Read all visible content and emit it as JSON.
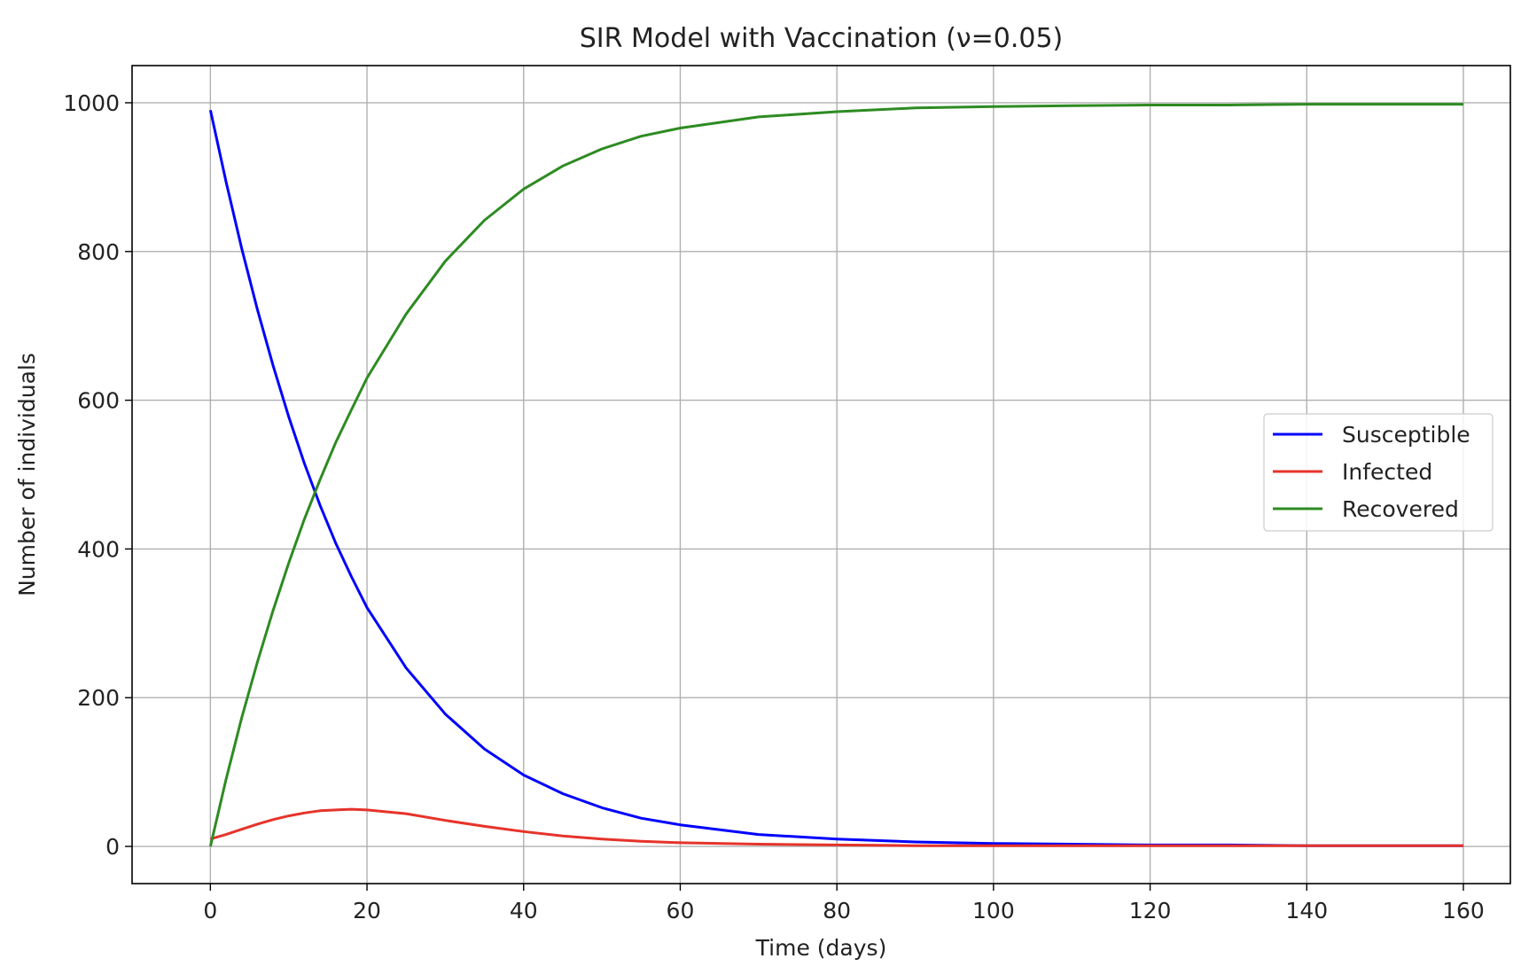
{
  "chart_data": {
    "type": "line",
    "title": "SIR Model with Vaccination (ν=0.05)",
    "xlabel": "Time (days)",
    "ylabel": "Number of individuals",
    "xlim": [
      -10,
      166
    ],
    "ylim": [
      -50,
      1050
    ],
    "xticks": [
      0,
      20,
      40,
      60,
      80,
      100,
      120,
      140,
      160
    ],
    "yticks": [
      0,
      200,
      400,
      600,
      800,
      1000
    ],
    "xtick_labels": [
      "0",
      "20",
      "40",
      "60",
      "80",
      "100",
      "120",
      "140",
      "160"
    ],
    "ytick_labels": [
      "0",
      "200",
      "400",
      "600",
      "800",
      "1000"
    ],
    "grid": true,
    "legend_position": "center-right",
    "x": [
      0,
      2,
      4,
      6,
      8,
      10,
      12,
      14,
      16,
      18,
      20,
      25,
      30,
      35,
      40,
      45,
      50,
      55,
      60,
      70,
      80,
      90,
      100,
      110,
      120,
      130,
      140,
      150,
      160
    ],
    "series": [
      {
        "name": "Susceptible",
        "color": "#0000ff",
        "values": [
          990,
          894,
          804,
          722,
          647,
          578,
          515,
          459,
          408,
          363,
          321,
          240,
          178,
          131,
          96,
          71,
          52,
          38,
          29,
          16,
          10,
          6,
          4,
          3,
          2,
          2,
          1,
          1,
          1
        ]
      },
      {
        "name": "Infected",
        "color": "#e6332a",
        "values": [
          10,
          16,
          23,
          30,
          36,
          41,
          45,
          48,
          49,
          50,
          49,
          44,
          35,
          27,
          20,
          14,
          10,
          7,
          5,
          3,
          2,
          1,
          1,
          1,
          1,
          1,
          1,
          1,
          1
        ]
      },
      {
        "name": "Recovered",
        "color": "#2e8b22",
        "values": [
          0,
          90,
          173,
          248,
          317,
          381,
          440,
          493,
          543,
          587,
          630,
          716,
          787,
          842,
          884,
          915,
          938,
          955,
          966,
          981,
          988,
          993,
          995,
          996,
          997,
          997,
          998,
          998,
          998
        ]
      }
    ]
  }
}
